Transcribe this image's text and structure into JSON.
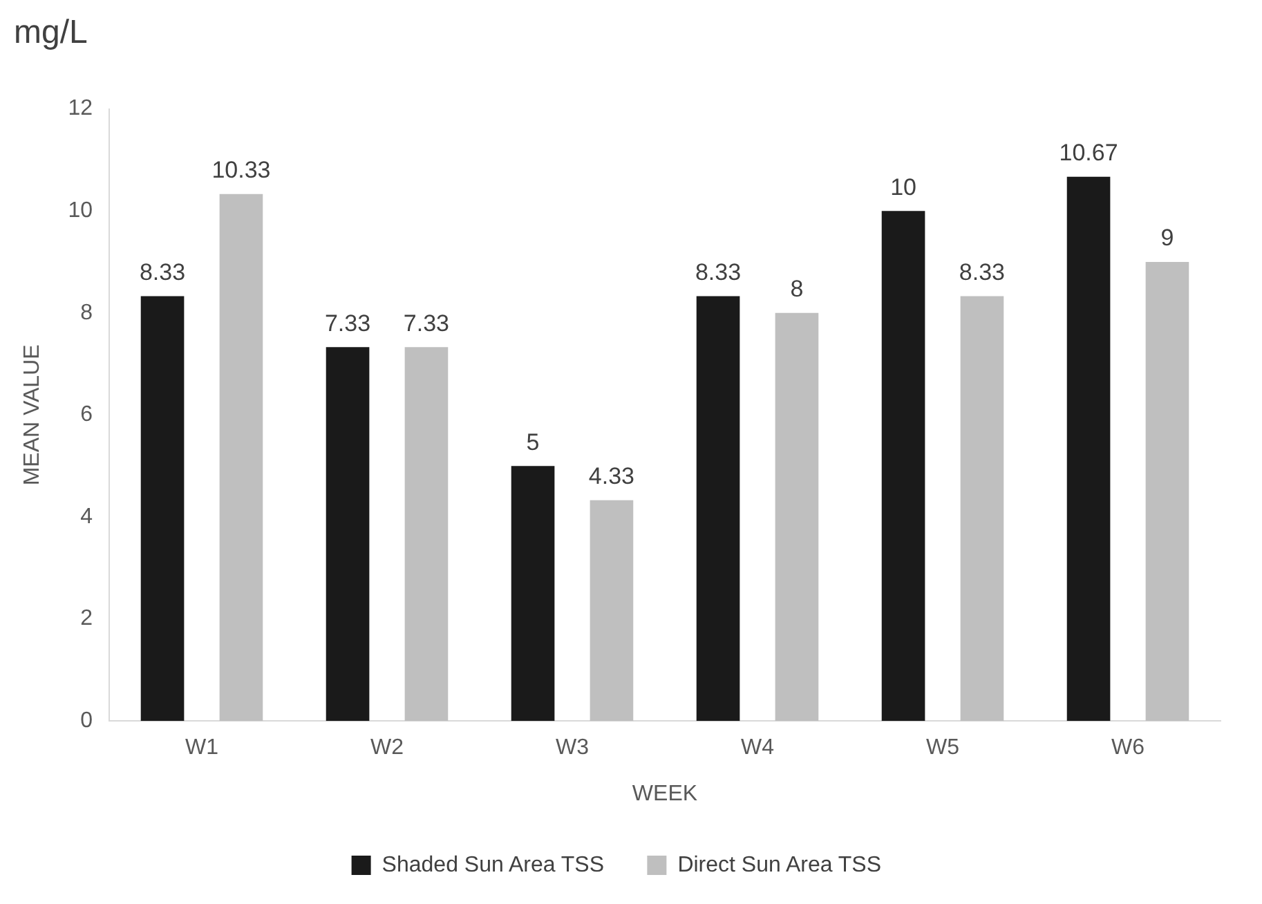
{
  "chart_data": {
    "type": "bar",
    "title": "mg/L",
    "xlabel": "WEEK",
    "ylabel": "MEAN VALUE",
    "categories": [
      "W1",
      "W2",
      "W3",
      "W4",
      "W5",
      "W6"
    ],
    "series": [
      {
        "name": "Shaded Sun Area TSS",
        "color": "#1a1a1a",
        "values": [
          8.33,
          7.33,
          5,
          8.33,
          10,
          10.67
        ]
      },
      {
        "name": "Direct Sun Area TSS",
        "color": "#bfbfbf",
        "values": [
          10.33,
          7.33,
          4.33,
          8,
          8.33,
          9
        ]
      }
    ],
    "ylim": [
      0,
      12
    ],
    "yticks": [
      0,
      2,
      4,
      6,
      8,
      10,
      12
    ],
    "grid": false,
    "legend": "bottom",
    "data_labels": true
  }
}
